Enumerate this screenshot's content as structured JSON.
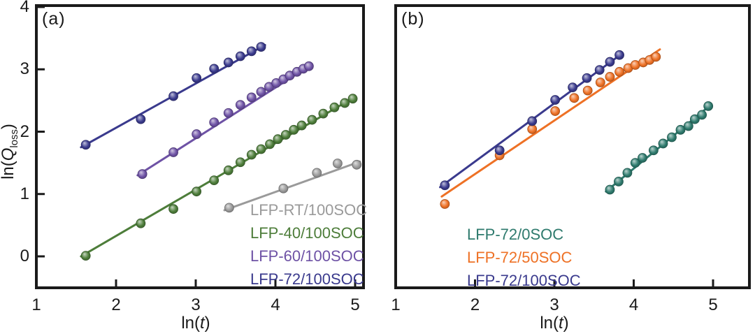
{
  "figure": {
    "background": "#ffffff",
    "frame_color": "#1a1a1a"
  },
  "axes": {
    "y_label": {
      "prefix": "ln(",
      "symbol": "Q",
      "subscript": "loss",
      "suffix": ")"
    },
    "x_label": {
      "prefix": "ln(",
      "symbol": "t",
      "suffix": ")"
    }
  },
  "chart_data": [
    {
      "panel": "a",
      "panel_label": "(a)",
      "type": "scatter",
      "xlabel": "ln(t)",
      "ylabel": "ln(Q_loss)",
      "xlim": [
        1,
        5.1
      ],
      "ylim": [
        -0.5,
        4.05
      ],
      "x_ticks": [
        1,
        2,
        3,
        4,
        5
      ],
      "y_ticks": [
        0,
        1,
        2,
        3,
        4
      ],
      "grid": false,
      "legend_position": "inside lower right",
      "series": [
        {
          "name": "LFP-RT/100SOC",
          "color": "#9a9a9a",
          "fit_line": [
            [
              3.36,
              0.74
            ],
            [
              5.06,
              1.52
            ]
          ],
          "points": [
            [
              3.42,
              0.78
            ],
            [
              4.1,
              1.09
            ],
            [
              4.52,
              1.34
            ],
            [
              4.78,
              1.49
            ],
            [
              5.02,
              1.47
            ]
          ]
        },
        {
          "name": "LFP-40/100SOC",
          "color": "#4d7d3a",
          "fit_line": [
            [
              1.56,
              0.0
            ],
            [
              5.0,
              2.56
            ]
          ],
          "points": [
            [
              1.62,
              0.01
            ],
            [
              2.31,
              0.53
            ],
            [
              2.72,
              0.76
            ],
            [
              3.01,
              1.04
            ],
            [
              3.23,
              1.22
            ],
            [
              3.41,
              1.38
            ],
            [
              3.56,
              1.51
            ],
            [
              3.7,
              1.63
            ],
            [
              3.82,
              1.72
            ],
            [
              3.93,
              1.8
            ],
            [
              4.03,
              1.88
            ],
            [
              4.13,
              1.95
            ],
            [
              4.23,
              2.03
            ],
            [
              4.33,
              2.1
            ],
            [
              4.46,
              2.19
            ],
            [
              4.6,
              2.29
            ],
            [
              4.74,
              2.39
            ],
            [
              4.87,
              2.46
            ],
            [
              4.97,
              2.53
            ]
          ]
        },
        {
          "name": "LFP-60/100SOC",
          "color": "#6e52a5",
          "fit_line": [
            [
              2.27,
              1.3
            ],
            [
              4.46,
              3.08
            ]
          ],
          "points": [
            [
              2.33,
              1.32
            ],
            [
              2.72,
              1.67
            ],
            [
              3.01,
              1.96
            ],
            [
              3.23,
              2.15
            ],
            [
              3.41,
              2.3
            ],
            [
              3.56,
              2.43
            ],
            [
              3.7,
              2.55
            ],
            [
              3.82,
              2.64
            ],
            [
              3.92,
              2.72
            ],
            [
              4.01,
              2.78
            ],
            [
              4.1,
              2.84
            ],
            [
              4.18,
              2.9
            ],
            [
              4.27,
              2.96
            ],
            [
              4.35,
              3.01
            ],
            [
              4.42,
              3.05
            ]
          ]
        },
        {
          "name": "LFP-72/100SOC",
          "color": "#3a3a8d",
          "fit_line": [
            [
              1.56,
              1.75
            ],
            [
              3.87,
              3.39
            ]
          ],
          "points": [
            [
              1.62,
              1.79
            ],
            [
              2.31,
              2.2
            ],
            [
              2.72,
              2.57
            ],
            [
              3.01,
              2.86
            ],
            [
              3.23,
              3.01
            ],
            [
              3.41,
              3.11
            ],
            [
              3.56,
              3.21
            ],
            [
              3.7,
              3.29
            ],
            [
              3.82,
              3.36
            ]
          ]
        }
      ]
    },
    {
      "panel": "b",
      "panel_label": "(b)",
      "type": "scatter",
      "xlabel": "ln(t)",
      "ylabel": "ln(Q_loss)",
      "xlim": [
        1,
        5.45
      ],
      "ylim": [
        -0.5,
        4.05
      ],
      "x_ticks": [
        1,
        2,
        3,
        4,
        5
      ],
      "y_ticks": [],
      "grid": false,
      "legend_position": "inside lower right",
      "series": [
        {
          "name": "LFP-72/0SOC",
          "color": "#2e7a6d",
          "fit_line": [
            [
              3.65,
              1.04
            ],
            [
              4.98,
              2.44
            ]
          ],
          "points": [
            [
              3.7,
              1.07
            ],
            [
              3.81,
              1.2
            ],
            [
              3.92,
              1.34
            ],
            [
              4.02,
              1.5
            ],
            [
              4.11,
              1.58
            ],
            [
              4.25,
              1.7
            ],
            [
              4.37,
              1.81
            ],
            [
              4.48,
              1.91
            ],
            [
              4.59,
              2.03
            ],
            [
              4.69,
              2.09
            ],
            [
              4.77,
              2.2
            ],
            [
              4.86,
              2.27
            ],
            [
              4.94,
              2.41
            ]
          ]
        },
        {
          "name": "LFP-72/50SOC",
          "color": "#ee7125",
          "fit_line": [
            [
              1.58,
              0.96
            ],
            [
              4.33,
              3.32
            ]
          ],
          "points": [
            [
              1.62,
              0.84
            ],
            [
              2.31,
              1.62
            ],
            [
              2.72,
              2.04
            ],
            [
              3.01,
              2.33
            ],
            [
              3.25,
              2.54
            ],
            [
              3.42,
              2.66
            ],
            [
              3.58,
              2.79
            ],
            [
              3.7,
              2.88
            ],
            [
              3.82,
              2.96
            ],
            [
              3.93,
              3.02
            ],
            [
              4.02,
              3.07
            ],
            [
              4.12,
              3.11
            ],
            [
              4.2,
              3.15
            ],
            [
              4.28,
              3.2
            ]
          ]
        },
        {
          "name": "LFP-72/100SOC",
          "color": "#3a3a8d",
          "fit_line": [
            [
              1.56,
              1.11
            ],
            [
              3.86,
              3.26
            ]
          ],
          "points": [
            [
              1.62,
              1.14
            ],
            [
              2.31,
              1.7
            ],
            [
              2.72,
              2.17
            ],
            [
              3.01,
              2.51
            ],
            [
              3.23,
              2.71
            ],
            [
              3.41,
              2.86
            ],
            [
              3.57,
              2.99
            ],
            [
              3.7,
              3.12
            ],
            [
              3.82,
              3.23
            ]
          ]
        }
      ]
    }
  ]
}
